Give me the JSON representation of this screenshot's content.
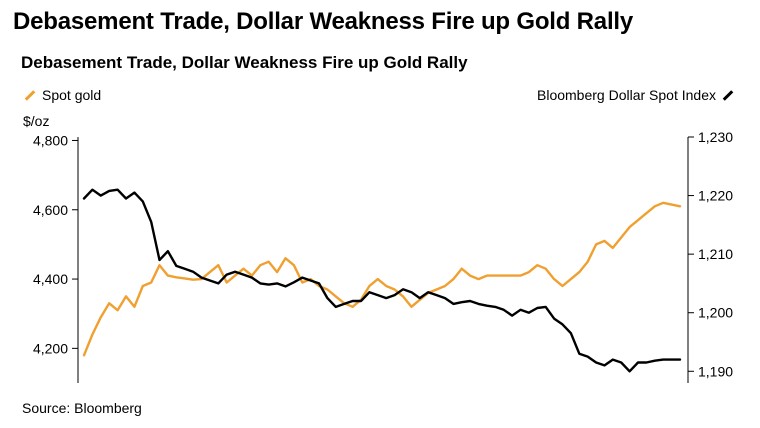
{
  "header": {
    "headline": "Debasement Trade, Dollar Weakness Fire up Gold Rally",
    "chart_title": "Debasement Trade, Dollar Weakness Fire up Gold Rally"
  },
  "legend": {
    "left_label": "Spot gold",
    "right_label": "Bloomberg Dollar Spot Index"
  },
  "axis": {
    "left_unit": "$/oz"
  },
  "footer": {
    "source": "Source: Bloomberg"
  },
  "colors": {
    "gold": "#f0a030",
    "dollar": "#000000",
    "axis": "#000000"
  },
  "chart_data": {
    "type": "line",
    "title": "Debasement Trade, Dollar Weakness Fire up Gold Rally",
    "legend_placement": "top",
    "grid": false,
    "x_unit": "time index (unlabeled axis)",
    "y_left": {
      "label": "$/oz",
      "lim": [
        4100,
        4810
      ],
      "ticks": [
        4200,
        4400,
        4600,
        4800
      ],
      "tick_labels": [
        "4,200",
        "4,400",
        "4,600",
        "4,800"
      ]
    },
    "y_right": {
      "lim": [
        1188,
        1230
      ],
      "ticks": [
        1190,
        1200,
        1210,
        1220,
        1230
      ],
      "tick_labels": [
        "1,190",
        "1,200",
        "1,210",
        "1,220",
        "1,230"
      ]
    },
    "series": [
      {
        "name": "Spot gold",
        "axis": "left",
        "color": "#f0a030",
        "x": [
          0,
          1,
          2,
          3,
          4,
          5,
          6,
          7,
          8,
          9,
          10,
          11,
          12,
          13,
          14,
          15,
          16,
          17,
          18,
          19,
          20,
          21,
          22,
          23,
          24,
          25,
          26,
          27,
          28,
          29,
          30,
          31,
          32,
          33,
          34,
          35,
          36,
          37,
          38,
          39,
          40,
          41,
          42,
          43,
          44,
          45,
          46,
          47,
          48,
          49,
          50,
          51,
          52,
          53,
          54,
          55,
          56,
          57,
          58,
          59,
          60,
          61,
          62,
          63,
          64,
          65,
          66,
          67,
          68,
          69,
          70,
          71
        ],
        "y": [
          4180,
          4240,
          4290,
          4330,
          4310,
          4350,
          4320,
          4380,
          4390,
          4440,
          4410,
          4405,
          4402,
          4398,
          4400,
          4420,
          4440,
          4390,
          4410,
          4430,
          4410,
          4440,
          4450,
          4420,
          4460,
          4440,
          4390,
          4400,
          4380,
          4370,
          4350,
          4330,
          4320,
          4340,
          4380,
          4400,
          4380,
          4370,
          4350,
          4320,
          4340,
          4360,
          4370,
          4380,
          4400,
          4430,
          4410,
          4400,
          4410,
          4410,
          4410,
          4410,
          4410,
          4420,
          4440,
          4430,
          4400,
          4380,
          4400,
          4420,
          4450,
          4500,
          4510,
          4490,
          4520,
          4550,
          4570,
          4590,
          4610,
          4620,
          4615,
          4610
        ]
      },
      {
        "name": "Bloomberg Dollar Spot Index",
        "axis": "right",
        "color": "#000000",
        "x": [
          0,
          1,
          2,
          3,
          4,
          5,
          6,
          7,
          8,
          9,
          10,
          11,
          12,
          13,
          14,
          15,
          16,
          17,
          18,
          19,
          20,
          21,
          22,
          23,
          24,
          25,
          26,
          27,
          28,
          29,
          30,
          31,
          32,
          33,
          34,
          35,
          36,
          37,
          38,
          39,
          40,
          41,
          42,
          43,
          44,
          45,
          46,
          47,
          48,
          49,
          50,
          51,
          52,
          53,
          54,
          55,
          56,
          57,
          58,
          59,
          60,
          61,
          62,
          63,
          64,
          65,
          66,
          67,
          68,
          69,
          70,
          71
        ],
        "y": [
          1219.5,
          1221.0,
          1220.0,
          1220.8,
          1221.0,
          1219.5,
          1220.5,
          1219.0,
          1215.5,
          1209.0,
          1210.5,
          1208.0,
          1207.5,
          1207.0,
          1206.0,
          1205.5,
          1205.0,
          1206.5,
          1207.0,
          1206.5,
          1206.0,
          1205.0,
          1204.8,
          1205.0,
          1204.5,
          1205.2,
          1206.0,
          1205.5,
          1205.0,
          1202.5,
          1201.0,
          1201.5,
          1202.0,
          1202.0,
          1203.5,
          1203.0,
          1202.5,
          1203.0,
          1204.0,
          1203.5,
          1202.5,
          1203.5,
          1203.0,
          1202.5,
          1201.5,
          1201.8,
          1202.0,
          1201.5,
          1201.2,
          1201.0,
          1200.5,
          1199.5,
          1200.5,
          1200.0,
          1200.8,
          1201.0,
          1199.0,
          1198.0,
          1196.5,
          1193.0,
          1192.5,
          1191.5,
          1191.0,
          1192.0,
          1191.5,
          1190.0,
          1191.5,
          1191.5,
          1191.8,
          1192.0,
          1192.0,
          1192.0
        ]
      }
    ]
  }
}
